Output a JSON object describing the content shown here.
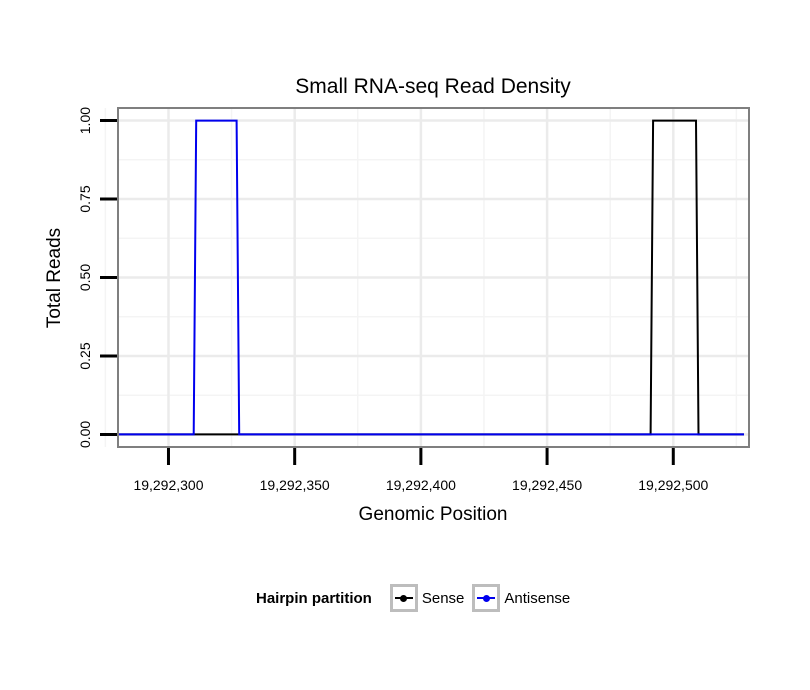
{
  "chart_data": {
    "type": "line",
    "title": "Small RNA-seq Read Density",
    "xlabel": "Genomic Position",
    "ylabel": "Total Reads",
    "xlim": [
      19292280,
      19292530
    ],
    "ylim": [
      -0.04,
      1.04
    ],
    "x_ticks": [
      19292300,
      19292350,
      19292400,
      19292450,
      19292500
    ],
    "x_tick_labels": [
      "19,292,300",
      "19,292,350",
      "19,292,400",
      "19,292,450",
      "19,292,500"
    ],
    "y_ticks": [
      0,
      0.25,
      0.5,
      0.75,
      1
    ],
    "y_tick_labels": [
      "0.00",
      "0.25",
      "0.50",
      "0.75",
      "1.00"
    ],
    "grid": true,
    "legend_position": "bottom",
    "series": [
      {
        "name": "Sense",
        "color": "#000000",
        "x": [
          19292280,
          19292491,
          19292492,
          19292509,
          19292510,
          19292528
        ],
        "values": [
          0,
          0,
          1,
          1,
          0,
          0
        ]
      },
      {
        "name": "Antisense",
        "color": "#0000ee",
        "x": [
          19292280,
          19292310,
          19292311,
          19292327,
          19292328,
          19292528
        ],
        "values": [
          0,
          0,
          1,
          1,
          0,
          0
        ]
      }
    ]
  },
  "legend": {
    "title": "Hairpin partition",
    "items": [
      {
        "label": "Sense",
        "color": "#000000"
      },
      {
        "label": "Antisense",
        "color": "#0000ee"
      }
    ]
  }
}
